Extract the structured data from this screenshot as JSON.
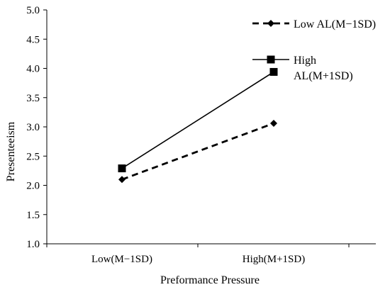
{
  "chart_data": {
    "type": "line",
    "title": "",
    "xlabel": "Preformance Pressure",
    "ylabel": "Presenteeism",
    "categories": [
      "Low(M−1SD)",
      "High(M+1SD)"
    ],
    "ylim": [
      1.0,
      5.0
    ],
    "yticks": [
      "1.0",
      "1.5",
      "2.0",
      "2.5",
      "3.0",
      "3.5",
      "4.0",
      "4.5",
      "5.0"
    ],
    "grid": false,
    "legend_position": "top-right",
    "series": [
      {
        "name": "Low AL(M−1SD)",
        "values": [
          2.1,
          3.06
        ],
        "line_style": "dashed",
        "marker": "diamond",
        "color": "#000000"
      },
      {
        "name": "High AL(M+1SD)",
        "legend_lines": [
          "High",
          "AL(M+1SD)"
        ],
        "values": [
          2.29,
          3.94
        ],
        "line_style": "solid",
        "marker": "square",
        "color": "#000000"
      }
    ]
  }
}
